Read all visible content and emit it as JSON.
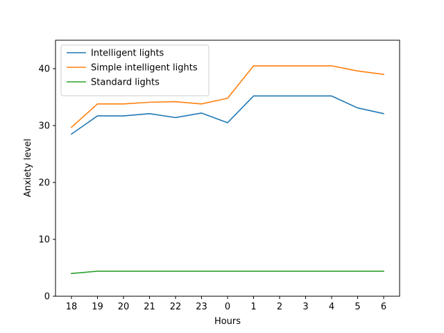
{
  "chart_data": {
    "type": "line",
    "categories": [
      "18",
      "19",
      "20",
      "21",
      "22",
      "23",
      "0",
      "1",
      "2",
      "3",
      "4",
      "5",
      "6"
    ],
    "xlabel": "Hours",
    "ylabel": "Anxiety level",
    "ylim": [
      0,
      45
    ],
    "yticks": [
      0,
      10,
      20,
      30,
      40
    ],
    "grid": false,
    "legend_position": "top-left",
    "series": [
      {
        "name": "Intelligent lights",
        "color": "#1f77b4",
        "values": [
          28.5,
          31.7,
          31.7,
          32.1,
          31.4,
          32.2,
          30.5,
          35.2,
          35.2,
          35.2,
          35.2,
          33.1,
          32.1
        ]
      },
      {
        "name": "Simple intelligent lights",
        "color": "#ff7f0e",
        "values": [
          29.7,
          33.8,
          33.8,
          34.1,
          34.2,
          33.8,
          34.8,
          40.5,
          40.5,
          40.5,
          40.5,
          39.6,
          39.0
        ]
      },
      {
        "name": "Standard lights",
        "color": "#2ca02c",
        "values": [
          4.0,
          4.4,
          4.4,
          4.4,
          4.4,
          4.4,
          4.4,
          4.4,
          4.4,
          4.4,
          4.4,
          4.4,
          4.4
        ]
      }
    ]
  }
}
